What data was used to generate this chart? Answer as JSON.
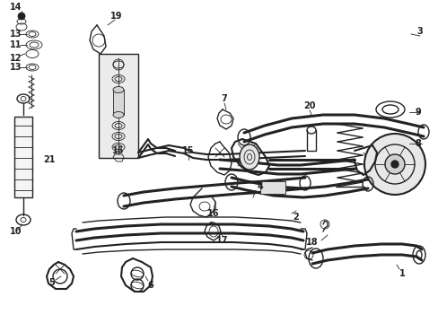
{
  "bg_color": "#ffffff",
  "line_color": "#222222",
  "label_color": "#000000",
  "fig_width": 4.89,
  "fig_height": 3.6,
  "dpi": 100,
  "xlim": [
    0,
    489
  ],
  "ylim": [
    0,
    360
  ]
}
